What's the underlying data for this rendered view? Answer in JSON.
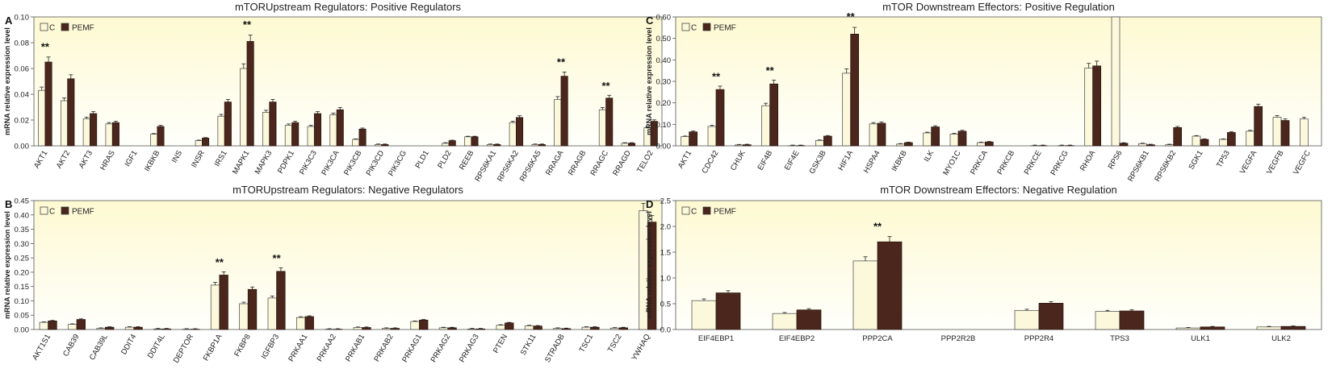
{
  "colors": {
    "control": "#fbf8dc",
    "pemf": "#4a261c",
    "plot_top": "#fdf9d2",
    "plot_bottom": "#fffffb",
    "axis": "#555555"
  },
  "chart_data": [
    {
      "panel": "A",
      "type": "bar",
      "title": "mTORUpstream Regulators: Positive Regulators",
      "ylabel": "mRNA relative expression level",
      "ylim": [
        0,
        0.1
      ],
      "yticks": [
        "0.00",
        "0.02",
        "0.04",
        "0.06",
        "0.08",
        "0.10"
      ],
      "legend": [
        "C",
        "PEMF"
      ],
      "categories": [
        "AKT1",
        "AKT2",
        "AKT3",
        "HRAS",
        "IGF1",
        "IKBKB",
        "INS",
        "INSR",
        "IRS1",
        "MAPK1",
        "MAPK3",
        "PDPK1",
        "PIK3C3",
        "PIK3CA",
        "PIK3CB",
        "PIK3CD",
        "PIK3CG",
        "PLD1",
        "PLD2",
        "REEB",
        "RPS6KA1",
        "RPS6KA2",
        "RPS6KA5",
        "RRAGA",
        "RRAGB",
        "RRAGC",
        "RRAGD",
        "TELO2"
      ],
      "series": [
        {
          "name": "C",
          "values": [
            0.043,
            0.035,
            0.021,
            0.017,
            0.0,
            0.009,
            0.0,
            0.004,
            0.023,
            0.06,
            0.026,
            0.016,
            0.015,
            0.024,
            0.005,
            0.001,
            0.0,
            0.0,
            0.002,
            0.007,
            0.001,
            0.018,
            0.001,
            0.036,
            0.0,
            0.028,
            0.002,
            0.014
          ]
        },
        {
          "name": "PEMF",
          "values": [
            0.065,
            0.052,
            0.025,
            0.018,
            0.0,
            0.015,
            0.0,
            0.006,
            0.034,
            0.081,
            0.034,
            0.018,
            0.025,
            0.028,
            0.013,
            0.001,
            0.0,
            0.0,
            0.004,
            0.007,
            0.001,
            0.022,
            0.001,
            0.054,
            0.0,
            0.037,
            0.002,
            0.019
          ]
        }
      ],
      "significance": [
        {
          "category": "AKT1",
          "label": "**"
        },
        {
          "category": "MAPK1",
          "label": "**"
        },
        {
          "category": "RRAGA",
          "label": "**"
        },
        {
          "category": "RRAGC",
          "label": "**"
        }
      ]
    },
    {
      "panel": "B",
      "type": "bar",
      "title": "mTORUpstream Regulators: Negative Regulators",
      "ylabel": "mRNA relative expression level",
      "ylim": [
        0,
        0.45
      ],
      "yticks": [
        "0.00",
        "0.05",
        "0.10",
        "0.15",
        "0.20",
        "0.25",
        "0.30",
        "0.35",
        "0.40",
        "0.45"
      ],
      "legend": [
        "C",
        "PEMF"
      ],
      "categories": [
        "AKT1S1",
        "CAB39",
        "CAB39L",
        "DDIT4",
        "DDIT4L",
        "DEPTOR",
        "FKBP1A",
        "FKBP8",
        "IGFBP3",
        "PRKAA1",
        "PRKAA2",
        "PRKAB1",
        "PRKAB2",
        "PRKAG1",
        "PRKAG2",
        "PRKAG3",
        "PTEN",
        "STK11",
        "STRADB",
        "TSC1",
        "TSC2",
        "YWHAQ"
      ],
      "series": [
        {
          "name": "C",
          "values": [
            0.025,
            0.018,
            0.004,
            0.008,
            0.002,
            0.001,
            0.155,
            0.09,
            0.11,
            0.042,
            0.001,
            0.007,
            0.004,
            0.028,
            0.006,
            0.002,
            0.015,
            0.013,
            0.004,
            0.008,
            0.005,
            0.415
          ]
        },
        {
          "name": "PEMF",
          "values": [
            0.03,
            0.035,
            0.008,
            0.008,
            0.002,
            0.001,
            0.19,
            0.14,
            0.203,
            0.045,
            0.001,
            0.007,
            0.004,
            0.033,
            0.006,
            0.002,
            0.023,
            0.012,
            0.003,
            0.008,
            0.006,
            0.375
          ]
        }
      ],
      "significance": [
        {
          "category": "FKBP1A",
          "label": "**"
        },
        {
          "category": "IGFBP3",
          "label": "**"
        }
      ]
    },
    {
      "panel": "C",
      "type": "bar",
      "title": "mTOR Downstream Effectors: Positive Regulation",
      "ylabel": "mRNA relative expression level",
      "ylim": [
        0,
        0.6
      ],
      "yticks": [
        "0.00",
        "0.10",
        "0.20",
        "0.30",
        "0.40",
        "0.50",
        "0.60"
      ],
      "legend": [
        "C",
        "PEMF"
      ],
      "categories": [
        "AKT1",
        "CDC42",
        "CHUK",
        "EIF4B",
        "EIF4E",
        "GSK3B",
        "HIF1A",
        "HSPA4",
        "IKBKB",
        "ILK",
        "MYO1C",
        "PRKCA",
        "PRKCB",
        "PRKCE",
        "PRKCG",
        "RHOA",
        "RPS6",
        "RPS6KB1",
        "RPS6KB2",
        "SGK1",
        "TP53",
        "VEGFA",
        "VEGFB",
        "VEGFC"
      ],
      "series": [
        {
          "name": "C",
          "values": [
            0.043,
            0.09,
            0.004,
            0.187,
            0.001,
            0.025,
            0.338,
            0.102,
            0.008,
            0.06,
            0.055,
            0.015,
            0.0,
            0.001,
            0.001,
            0.362,
            0.6,
            0.01,
            0.005,
            0.045,
            0.03,
            0.068,
            0.133,
            0.125
          ]
        },
        {
          "name": "PEMF",
          "values": [
            0.065,
            0.262,
            0.005,
            0.288,
            0.001,
            0.045,
            0.52,
            0.105,
            0.015,
            0.088,
            0.068,
            0.018,
            0.0,
            0.001,
            0.001,
            0.372,
            0.012,
            0.005,
            0.085,
            0.03,
            0.062,
            0.183,
            0.118,
            0.0
          ]
        }
      ],
      "significance": [
        {
          "category": "CDC42",
          "label": "**"
        },
        {
          "category": "EIF4B",
          "label": "**"
        },
        {
          "category": "HIF1A",
          "label": "**"
        }
      ]
    },
    {
      "panel": "D",
      "type": "bar",
      "title": "mTOR Downstream Effectors: Negative Regulation",
      "ylabel": "mRNA relative expression level",
      "ylim": [
        0,
        2.5
      ],
      "yticks": [
        "0.0",
        "0.5",
        "1.0",
        "1.5",
        "2.0",
        "2.5"
      ],
      "legend": [
        "C",
        "PEMF"
      ],
      "categories": [
        "EIF4EBP1",
        "EIF4EBP2",
        "PPP2CA",
        "PPP2R2B",
        "PPP2R4",
        "TPS3",
        "ULK1",
        "ULK2"
      ],
      "series": [
        {
          "name": "C",
          "values": [
            0.56,
            0.31,
            1.33,
            0.0,
            0.37,
            0.35,
            0.03,
            0.05
          ]
        },
        {
          "name": "PEMF",
          "values": [
            0.71,
            0.38,
            1.7,
            0.0,
            0.51,
            0.36,
            0.05,
            0.06
          ]
        }
      ],
      "significance": [
        {
          "category": "PPP2CA",
          "label": "**"
        }
      ]
    }
  ]
}
